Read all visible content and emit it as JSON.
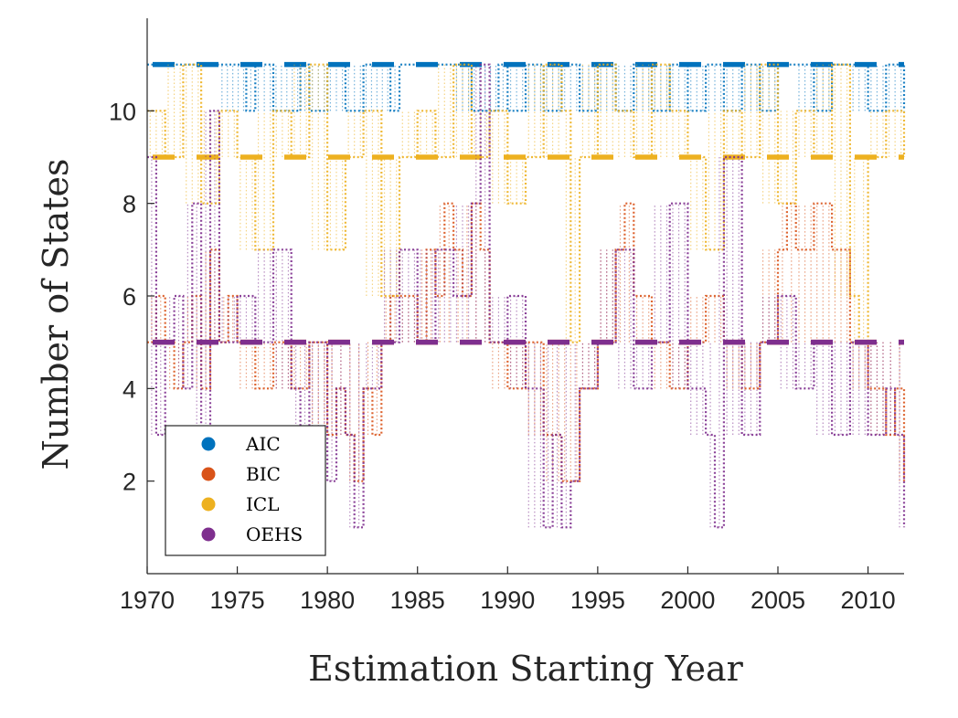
{
  "chart_data": {
    "type": "line",
    "title": "",
    "xlabel": "Estimation Starting Year",
    "ylabel": "Number of States",
    "xlim": [
      1970,
      2012
    ],
    "ylim": [
      0,
      12
    ],
    "xticks": [
      1970,
      1975,
      1980,
      1985,
      1990,
      1995,
      2000,
      2005,
      2010
    ],
    "xtick_labels": [
      "1970",
      "1975",
      "1980",
      "1985",
      "1990",
      "1995",
      "2000",
      "2005",
      "2010"
    ],
    "yticks": [
      2,
      4,
      6,
      8,
      10
    ],
    "ytick_labels": [
      "2",
      "4",
      "6",
      "8",
      "10"
    ],
    "grid": false,
    "legend_position": "bottom-left",
    "series": [
      {
        "name": "AIC",
        "color": "#0072BD",
        "dominant_value": 11,
        "x": [
          1970,
          1972,
          1974,
          1975.5,
          1976,
          1977,
          1978.5,
          1979,
          1980,
          1981,
          1982,
          1983.5,
          1984,
          1985,
          1986,
          1987,
          1988,
          1989.5,
          1990,
          1991,
          1992,
          1993,
          1994,
          1995,
          1996,
          1997,
          1998,
          1999,
          2000,
          2001,
          2002,
          2003,
          2004,
          2005,
          2006,
          2007,
          2008,
          2009,
          2010,
          2011,
          2012
        ],
        "values": [
          11,
          11,
          11,
          10,
          11,
          10,
          11,
          10,
          11,
          10,
          11,
          10,
          11,
          11,
          11,
          11,
          10,
          11,
          10,
          11,
          10,
          11,
          10,
          11,
          10,
          11,
          10,
          11,
          10,
          11,
          10,
          11,
          10,
          11,
          11,
          10,
          11,
          11,
          10,
          11,
          10
        ]
      },
      {
        "name": "BIC",
        "color": "#D95319",
        "dominant_value": 5,
        "x": [
          1970,
          1970.5,
          1971,
          1971.5,
          1972,
          1972.5,
          1973,
          1973.5,
          1974,
          1974.5,
          1975,
          1976,
          1977,
          1978,
          1979,
          1980,
          1980.5,
          1981,
          1981.5,
          1982,
          1982.5,
          1983,
          1983.5,
          1984,
          1985,
          1985.5,
          1986,
          1986.5,
          1987,
          1987.5,
          1988,
          1988.5,
          1989,
          1990,
          1991,
          1992,
          1993,
          1994,
          1995,
          1996,
          1996.5,
          1997,
          1998,
          1999,
          2000,
          2001,
          2002,
          2003,
          2004,
          2005,
          2005.5,
          2006,
          2007,
          2008,
          2009,
          2010,
          2011,
          2011.5,
          2012
        ],
        "values": [
          5,
          6,
          5,
          4,
          5,
          6,
          4,
          7,
          5,
          6,
          5,
          4,
          5,
          4,
          5,
          3,
          4,
          3,
          2,
          4,
          3,
          5,
          6,
          6,
          5,
          7,
          6,
          8,
          7,
          6,
          8,
          7,
          5,
          4,
          5,
          3,
          2,
          4,
          5,
          7,
          8,
          6,
          5,
          4,
          5,
          6,
          5,
          4,
          5,
          7,
          8,
          7,
          8,
          7,
          5,
          4,
          3,
          4,
          2
        ]
      },
      {
        "name": "ICL",
        "color": "#EDB120",
        "dominant_value": 9,
        "x": [
          1970,
          1971,
          1972,
          1973,
          1974,
          1975,
          1976,
          1977,
          1978,
          1979,
          1980,
          1981,
          1982,
          1983,
          1984,
          1985,
          1986,
          1987,
          1988,
          1989,
          1990,
          1991,
          1992,
          1993,
          1993.5,
          1994,
          1995,
          1996,
          1997,
          1998,
          1999,
          2000,
          2001,
          2002,
          2003,
          2004,
          2005,
          2006,
          2007,
          2008,
          2009,
          2009.5,
          2010,
          2011,
          2012
        ],
        "values": [
          10,
          9,
          11,
          8,
          10,
          9,
          7,
          10,
          9,
          11,
          7,
          9,
          10,
          6,
          9,
          10,
          9,
          11,
          9,
          10,
          8,
          9,
          11,
          10,
          5,
          9,
          11,
          10,
          9,
          11,
          10,
          9,
          7,
          10,
          9,
          11,
          8,
          10,
          9,
          11,
          6,
          5,
          9,
          10,
          9
        ]
      },
      {
        "name": "OEHS",
        "color": "#7E2F8E",
        "dominant_value": 5,
        "x": [
          1970,
          1970.5,
          1971,
          1971.5,
          1972,
          1972.5,
          1973,
          1973.5,
          1974,
          1975,
          1976,
          1977,
          1978,
          1978.5,
          1979,
          1980,
          1980.5,
          1981,
          1981.5,
          1982,
          1983,
          1984,
          1985,
          1986,
          1987,
          1988,
          1988.5,
          1989,
          1990,
          1991,
          1992,
          1992.5,
          1993,
          1993.5,
          1994,
          1995,
          1996,
          1997,
          1998,
          1999,
          2000,
          2001,
          2001.5,
          2002,
          2003,
          2004,
          2005,
          2006,
          2007,
          2008,
          2009,
          2010,
          2011,
          2011.5,
          2012
        ],
        "values": [
          9,
          3,
          5,
          6,
          4,
          8,
          3,
          10,
          5,
          6,
          5,
          7,
          4,
          3,
          5,
          2,
          4,
          3,
          1,
          4,
          5,
          7,
          5,
          7,
          6,
          8,
          11,
          5,
          6,
          4,
          1,
          3,
          1,
          2,
          4,
          5,
          7,
          4,
          5,
          8,
          4,
          3,
          1,
          9,
          3,
          5,
          6,
          4,
          5,
          3,
          5,
          3,
          4,
          3,
          1
        ]
      }
    ]
  }
}
